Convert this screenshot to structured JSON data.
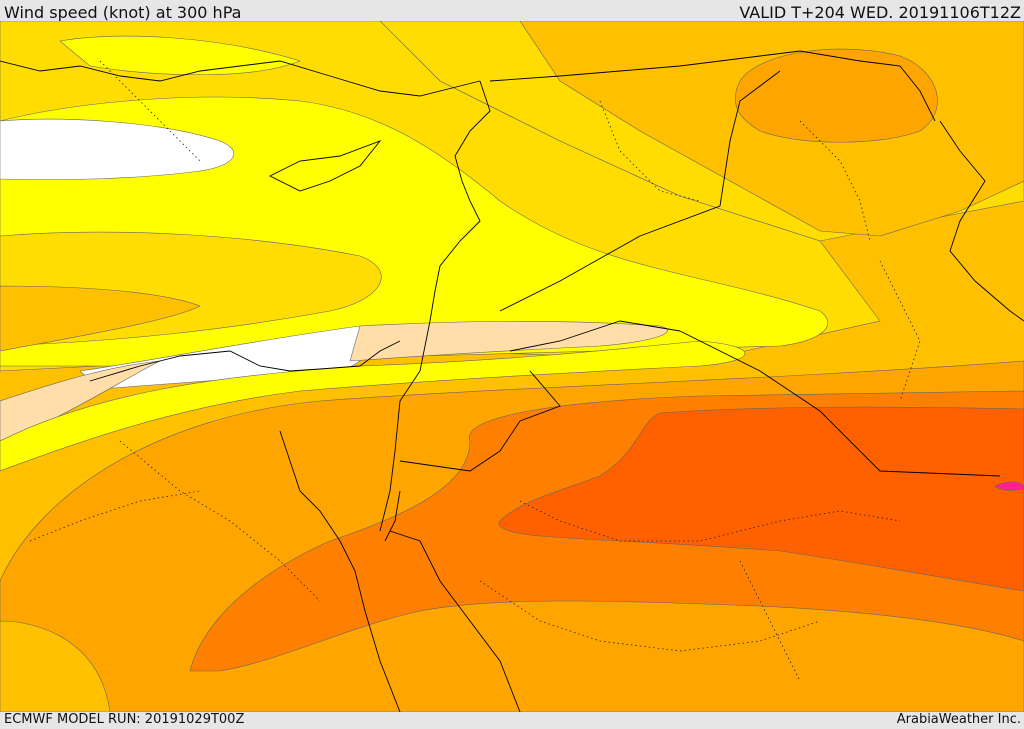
{
  "header": {
    "title": "Wind speed (knot) at 300 hPa",
    "valid": "VALID T+204 WED. 20191106T12Z"
  },
  "footer": {
    "model_run": "ECMWF MODEL RUN: 20191029T00Z",
    "credit": "ArabiaWeather Inc."
  },
  "colors": {
    "white": "#ffffff",
    "yellow": "#ffff00",
    "gold": "#ffdd00",
    "amber": "#ffc000",
    "orange_light": "#ffa500",
    "orange": "#ff8000",
    "orange_dark": "#ff6000",
    "peach": "#ffdeaa",
    "magenta": "#ff2090",
    "border": "#000000"
  }
}
